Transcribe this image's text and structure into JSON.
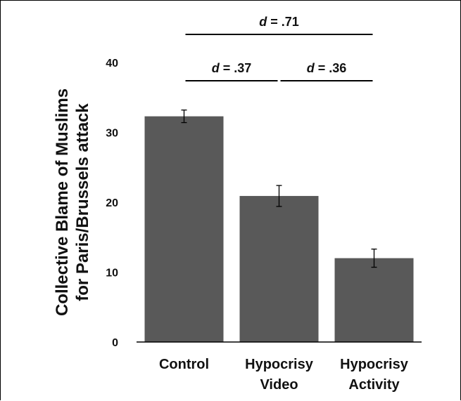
{
  "chart_data": {
    "type": "bar",
    "title": "",
    "xlabel": "",
    "ylabel_lines": [
      "Collective Blame of Muslims",
      "for Paris/Brussels attack"
    ],
    "ylim": [
      0,
      40
    ],
    "yticks": [
      "0",
      "10",
      "20",
      "30",
      "40"
    ],
    "categories": [
      {
        "line1": "Control",
        "line2": ""
      },
      {
        "line1": "Hypocrisy",
        "line2": "Video"
      },
      {
        "line1": "Hypocrisy",
        "line2": "Activity"
      }
    ],
    "values": [
      32.3,
      20.9,
      12.0
    ],
    "error_bars": [
      [
        31.4,
        33.2
      ],
      [
        19.4,
        22.4
      ],
      [
        10.7,
        13.3
      ]
    ],
    "bar_color": "#595959",
    "annotations": [
      {
        "letter": "d",
        "value": " = .71",
        "from": 0,
        "to": 2,
        "level": 2
      },
      {
        "letter": "d",
        "value": " = .37",
        "from": 0,
        "to": 1,
        "level": 1
      },
      {
        "letter": "d",
        "value": " = .36",
        "from": 1,
        "to": 2,
        "level": 1
      }
    ]
  }
}
